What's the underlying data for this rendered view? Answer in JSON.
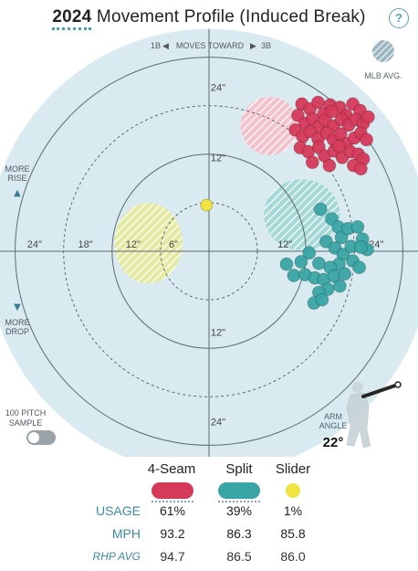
{
  "header": {
    "year": "2024",
    "title": "Movement Profile (Induced Break)",
    "help_icon": "?"
  },
  "axes": {
    "direction_left": "1B",
    "direction_mid": "MOVES TOWARD",
    "direction_right": "3B",
    "more_rise": "MORE\nRISE",
    "more_drop": "MORE\nDROP",
    "ring_labels_horizontal": [
      "24\"",
      "18\"",
      "12\"",
      "6\"",
      "12\"",
      "24\""
    ],
    "ring_labels_vertical": [
      "24\"",
      "12\"",
      "12\"",
      "24\""
    ]
  },
  "legend": {
    "mlb_avg": "MLB AVG."
  },
  "toggle": {
    "label": "100 PITCH\nSAMPLE",
    "state": "off"
  },
  "arm": {
    "label": "ARM\nANGLE",
    "value": "22°"
  },
  "table": {
    "pitches": [
      "4-Seam",
      "Split",
      "Slider"
    ],
    "rows": [
      {
        "label": "USAGE",
        "values": [
          "61%",
          "39%",
          "1%"
        ]
      },
      {
        "label": "MPH",
        "values": [
          "93.2",
          "86.3",
          "85.8"
        ]
      },
      {
        "label": "RHP AVG",
        "values": [
          "94.7",
          "86.5",
          "86.0"
        ]
      }
    ]
  },
  "colors": {
    "fourseam": "#d63a5a",
    "split": "#3aa5a5",
    "slider": "#f0e441",
    "background_circle": "#d9ebf0",
    "accent": "#4a9db0"
  },
  "chart_data": {
    "type": "scatter",
    "xlabel": "",
    "ylabel": "",
    "xlim": [
      -30,
      30
    ],
    "ylim": [
      -30,
      30
    ],
    "grid_rings": [
      6,
      12,
      18,
      24
    ],
    "series": [
      {
        "name": "4-Seam",
        "color": "#d63a5a",
        "mlb_avg": {
          "x": 7.5,
          "y": 15.5,
          "rx": 3.6,
          "ry": 3.6
        },
        "points": [
          [
            11.5,
            18.2
          ],
          [
            12.5,
            17.6
          ],
          [
            13.5,
            18.4
          ],
          [
            14.2,
            17.0
          ],
          [
            15.0,
            18.1
          ],
          [
            16.2,
            17.8
          ],
          [
            17.0,
            16.8
          ],
          [
            17.8,
            18.2
          ],
          [
            18.7,
            17.4
          ],
          [
            11.0,
            16.8
          ],
          [
            11.9,
            15.8
          ],
          [
            12.8,
            16.4
          ],
          [
            13.6,
            15.4
          ],
          [
            14.4,
            16.2
          ],
          [
            15.4,
            15.5
          ],
          [
            16.4,
            16.3
          ],
          [
            17.3,
            15.6
          ],
          [
            18.2,
            16.3
          ],
          [
            19.1,
            15.8
          ],
          [
            19.7,
            16.6
          ],
          [
            10.7,
            15.0
          ],
          [
            11.6,
            14.2
          ],
          [
            12.5,
            14.8
          ],
          [
            13.5,
            13.9
          ],
          [
            14.6,
            14.6
          ],
          [
            15.4,
            13.8
          ],
          [
            16.3,
            14.5
          ],
          [
            17.0,
            13.3
          ],
          [
            18.0,
            14.0
          ],
          [
            18.8,
            14.6
          ],
          [
            19.5,
            13.8
          ],
          [
            11.3,
            12.8
          ],
          [
            12.3,
            12.3
          ],
          [
            13.6,
            12.9
          ],
          [
            14.3,
            11.8
          ],
          [
            15.5,
            12.4
          ],
          [
            16.5,
            11.6
          ],
          [
            17.5,
            12.3
          ],
          [
            18.5,
            12.0
          ],
          [
            19.1,
            11.4
          ],
          [
            12.8,
            11.0
          ],
          [
            14.9,
            10.6
          ],
          [
            17.9,
            10.6
          ],
          [
            18.8,
            10.2
          ],
          [
            16.1,
            13.0
          ],
          [
            15.2,
            17.3
          ]
        ]
      },
      {
        "name": "Split",
        "color": "#3aa5a5",
        "mlb_avg": {
          "x": 11.5,
          "y": 4.5,
          "rx": 4.7,
          "ry": 4.4
        },
        "points": [
          [
            13.8,
            5.2
          ],
          [
            15.2,
            4.0
          ],
          [
            16.0,
            3.0
          ],
          [
            16.4,
            1.7
          ],
          [
            17.2,
            2.8
          ],
          [
            18.4,
            3.0
          ],
          [
            19.0,
            1.5
          ],
          [
            19.6,
            0.2
          ],
          [
            14.5,
            1.2
          ],
          [
            15.6,
            0.4
          ],
          [
            16.6,
            -0.4
          ],
          [
            17.6,
            0.6
          ],
          [
            18.8,
            0.5
          ],
          [
            17.8,
            -1.2
          ],
          [
            18.6,
            -2.0
          ],
          [
            16.1,
            -1.6
          ],
          [
            15.0,
            -2.0
          ],
          [
            13.6,
            -1.5
          ],
          [
            12.4,
            -0.2
          ],
          [
            11.4,
            -1.3
          ],
          [
            9.6,
            -1.6
          ],
          [
            10.5,
            -3.0
          ],
          [
            11.9,
            -2.9
          ],
          [
            13.1,
            -3.3
          ],
          [
            14.2,
            -3.5
          ],
          [
            15.5,
            -3.1
          ],
          [
            16.8,
            -2.8
          ],
          [
            14.7,
            -4.7
          ],
          [
            13.6,
            -5.1
          ],
          [
            13.0,
            -6.4
          ],
          [
            14.0,
            -6.0
          ],
          [
            16.2,
            -4.3
          ]
        ]
      },
      {
        "name": "Slider",
        "color": "#f0e441",
        "mlb_avg": {
          "x": -7.5,
          "y": 1.0,
          "rx": 4.2,
          "ry": 5.0
        },
        "points": [
          [
            -0.3,
            5.7
          ]
        ]
      }
    ]
  }
}
